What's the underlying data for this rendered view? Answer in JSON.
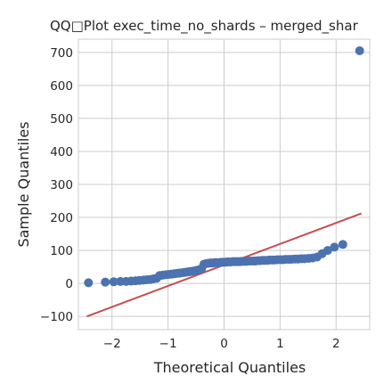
{
  "chart_data": {
    "type": "scatter",
    "title": "QQ□Plot exec_time_no_shards – merged_shar",
    "xlabel": "Theoretical Quantiles",
    "ylabel": "Sample Quantiles",
    "xlim": [
      -2.6,
      2.6
    ],
    "ylim": [
      -140,
      740
    ],
    "x_ticks": [
      {
        "value": -2,
        "label": "−2"
      },
      {
        "value": -1,
        "label": "−1"
      },
      {
        "value": 0,
        "label": "0"
      },
      {
        "value": 1,
        "label": "1"
      },
      {
        "value": 2,
        "label": "2"
      }
    ],
    "y_ticks": [
      {
        "value": -100,
        "label": "−100"
      },
      {
        "value": 0,
        "label": "0"
      },
      {
        "value": 100,
        "label": "100"
      },
      {
        "value": 200,
        "label": "200"
      },
      {
        "value": 300,
        "label": "300"
      },
      {
        "value": 400,
        "label": "400"
      },
      {
        "value": 500,
        "label": "500"
      },
      {
        "value": 600,
        "label": "600"
      },
      {
        "value": 700,
        "label": "700"
      }
    ],
    "grid": true,
    "marker_color": "#4c72b0",
    "line_color": "#c44e52",
    "reference_line": {
      "x": [
        -2.45,
        2.45
      ],
      "y": [
        -100,
        212
      ]
    },
    "points": {
      "x": [
        -2.42,
        -2.12,
        -1.97,
        -1.85,
        -1.75,
        -1.66,
        -1.58,
        -1.51,
        -1.44,
        -1.38,
        -1.32,
        -1.26,
        -1.2,
        -1.15,
        -1.1,
        -1.05,
        -1.0,
        -0.95,
        -0.9,
        -0.86,
        -0.81,
        -0.77,
        -0.72,
        -0.68,
        -0.64,
        -0.6,
        -0.56,
        -0.52,
        -0.48,
        -0.44,
        -0.4,
        -0.36,
        -0.32,
        -0.28,
        -0.24,
        -0.2,
        -0.16,
        -0.12,
        -0.08,
        -0.05,
        -0.02,
        0.02,
        0.05,
        0.08,
        0.12,
        0.16,
        0.2,
        0.24,
        0.28,
        0.32,
        0.36,
        0.4,
        0.44,
        0.48,
        0.52,
        0.56,
        0.6,
        0.64,
        0.68,
        0.72,
        0.77,
        0.81,
        0.86,
        0.9,
        0.95,
        1.0,
        1.05,
        1.1,
        1.15,
        1.2,
        1.26,
        1.32,
        1.38,
        1.44,
        1.51,
        1.58,
        1.66,
        1.75,
        1.85,
        1.97,
        2.12,
        2.42
      ],
      "y": [
        2,
        4,
        5,
        6,
        6,
        7,
        8,
        9,
        10,
        11,
        12,
        14,
        16,
        24,
        25,
        26,
        27,
        28,
        29,
        30,
        31,
        32,
        33,
        34,
        35,
        36,
        37,
        38,
        40,
        42,
        45,
        58,
        60,
        61,
        62,
        62,
        63,
        63,
        63,
        64,
        64,
        64,
        65,
        65,
        65,
        66,
        66,
        66,
        66,
        67,
        67,
        67,
        68,
        68,
        68,
        68,
        69,
        69,
        70,
        70,
        70,
        71,
        71,
        71,
        72,
        72,
        72,
        73,
        73,
        73,
        74,
        74,
        75,
        75,
        76,
        77,
        80,
        90,
        100,
        110,
        118,
        705
      ]
    }
  }
}
